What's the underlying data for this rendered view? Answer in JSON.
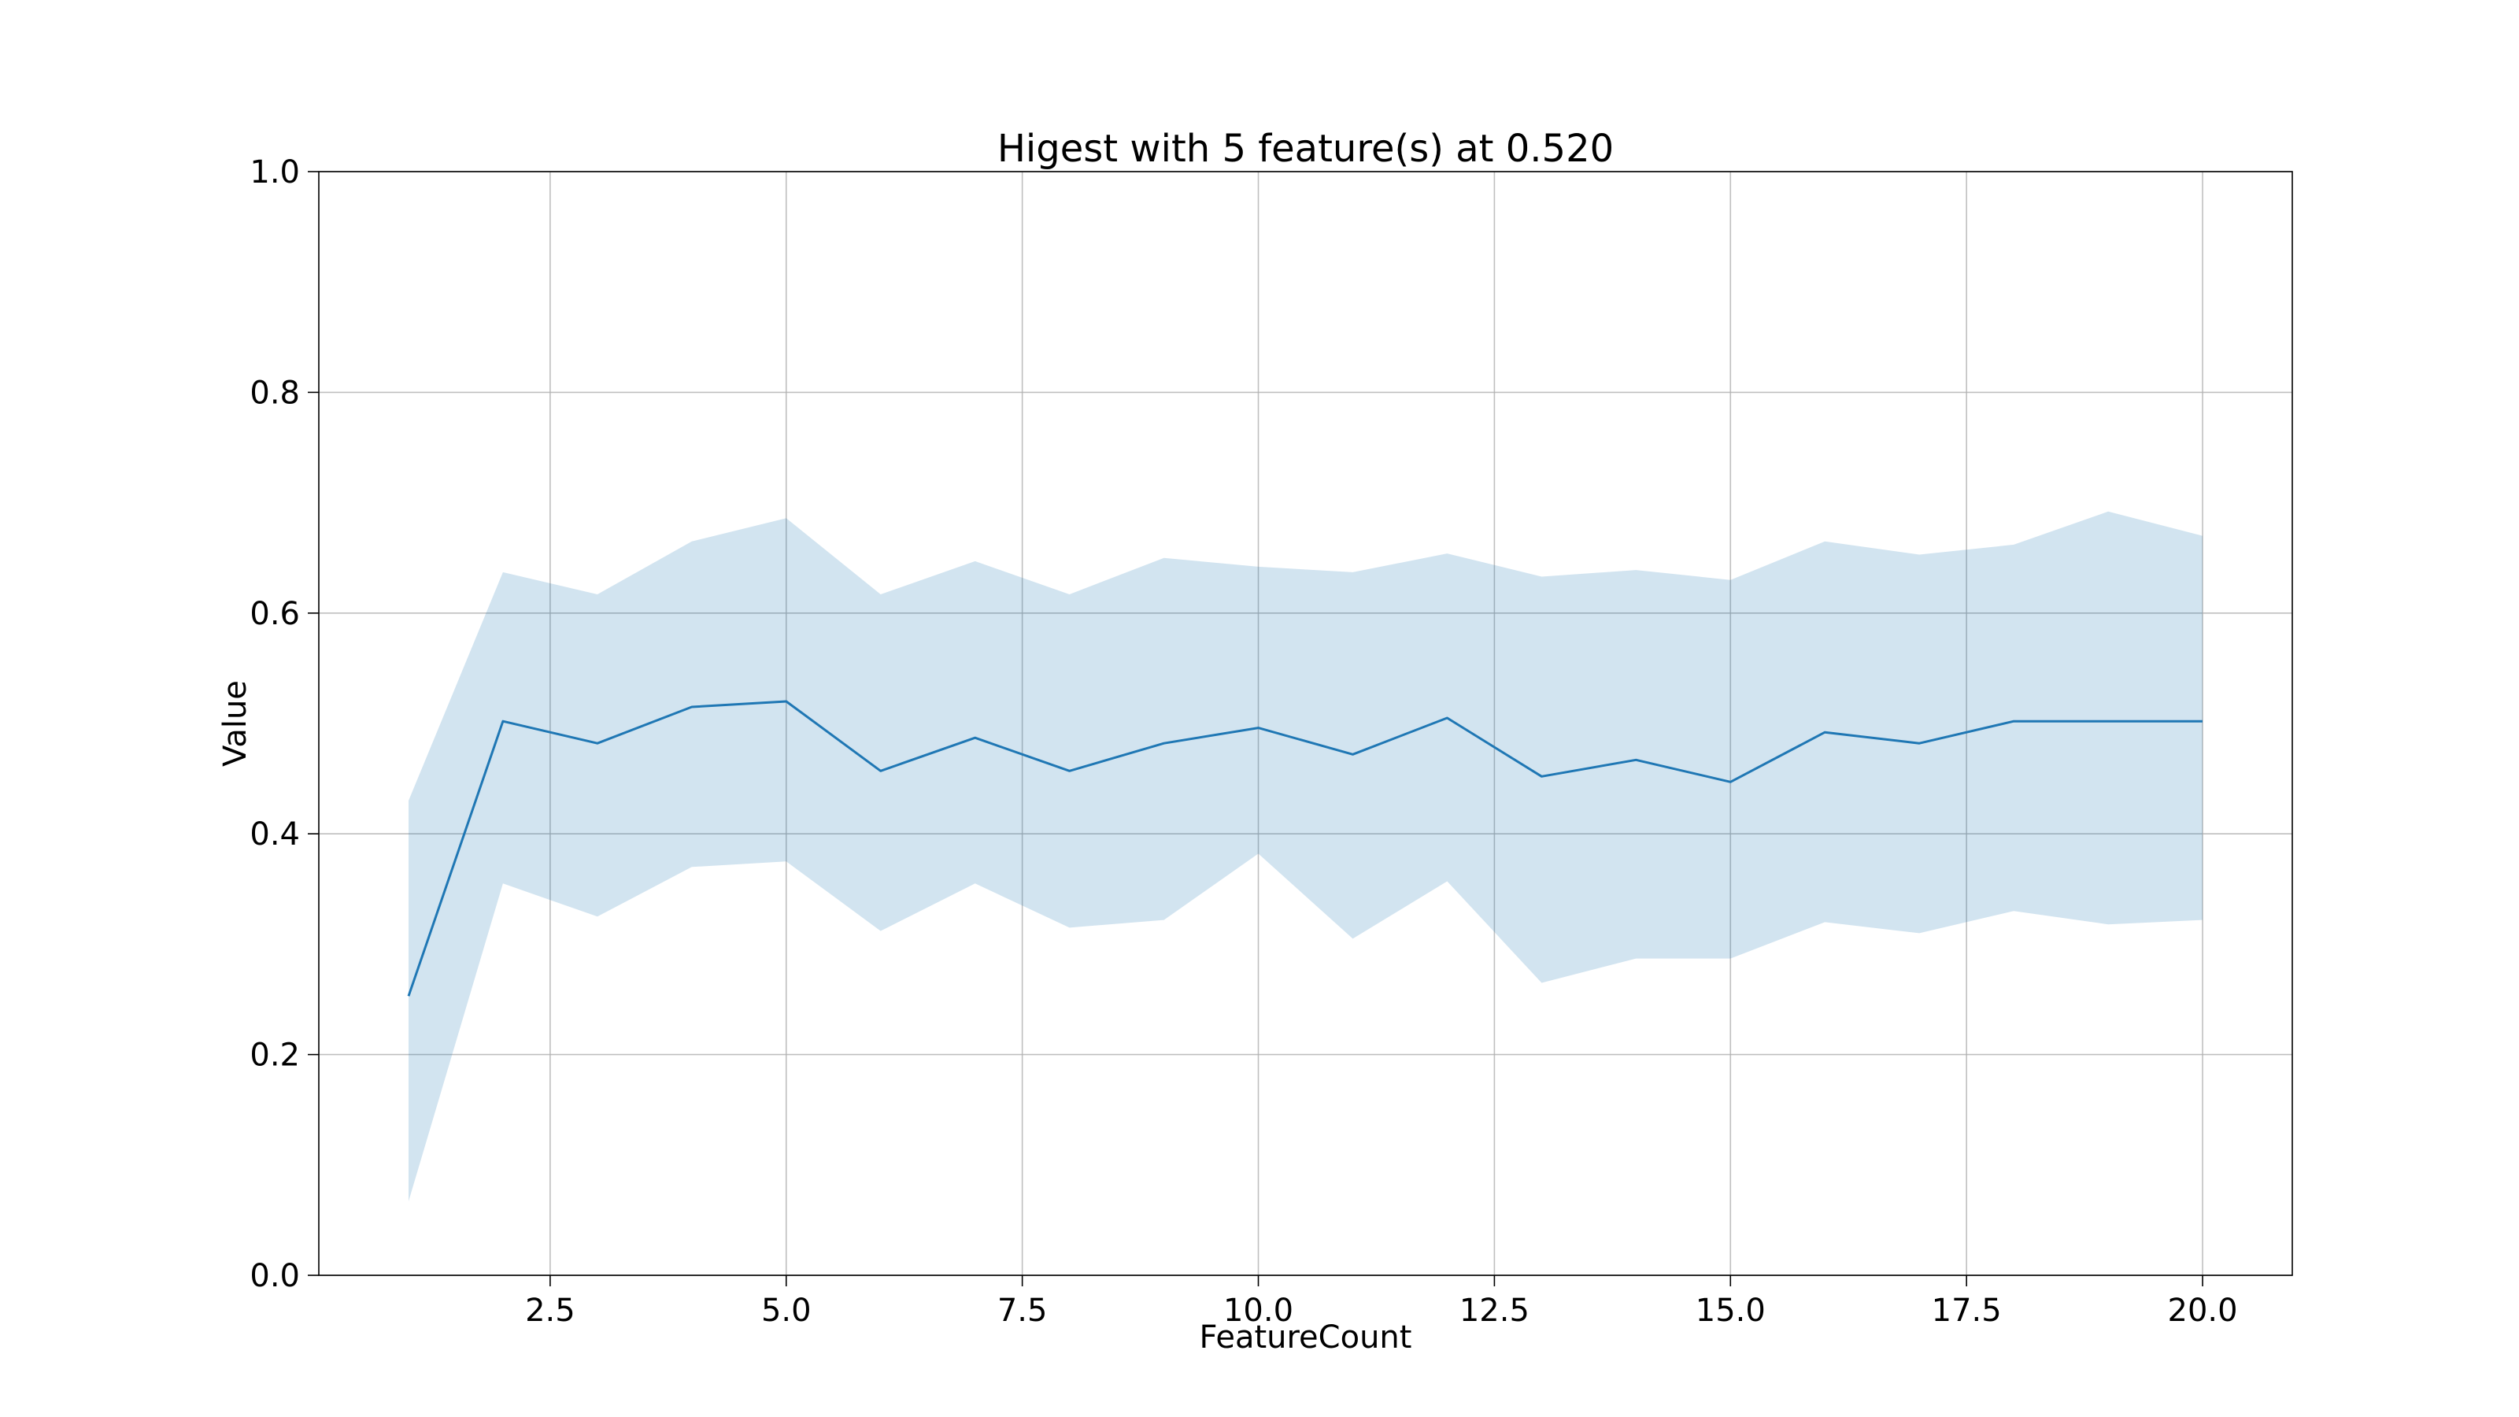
{
  "chart_data": {
    "type": "line",
    "title": "Higest with 5 feature(s) at 0.520",
    "xlabel": "FeatureCount",
    "ylabel": "Value",
    "xlim": [
      0.05,
      20.95
    ],
    "ylim": [
      0.0,
      1.0
    ],
    "x_ticks": [
      2.5,
      5.0,
      7.5,
      10.0,
      12.5,
      15.0,
      17.5,
      20.0
    ],
    "x_tick_labels": [
      "2.5",
      "5.0",
      "7.5",
      "10.0",
      "12.5",
      "15.0",
      "17.5",
      "20.0"
    ],
    "y_ticks": [
      0.0,
      0.2,
      0.4,
      0.6,
      0.8,
      1.0
    ],
    "y_tick_labels": [
      "0.0",
      "0.2",
      "0.4",
      "0.6",
      "0.8",
      "1.0"
    ],
    "grid": true,
    "legend": "none",
    "color": "#1f77b4",
    "x": [
      1,
      2,
      3,
      4,
      5,
      6,
      7,
      8,
      9,
      10,
      11,
      12,
      13,
      14,
      15,
      16,
      17,
      18,
      19,
      20
    ],
    "series": [
      {
        "values": [
          0.253,
          0.502,
          0.482,
          0.515,
          0.52,
          0.457,
          0.487,
          0.457,
          0.482,
          0.496,
          0.472,
          0.505,
          0.452,
          0.467,
          0.447,
          0.492,
          0.482,
          0.502,
          0.502,
          0.502
        ],
        "lower": [
          0.067,
          0.355,
          0.325,
          0.37,
          0.375,
          0.312,
          0.355,
          0.315,
          0.322,
          0.382,
          0.305,
          0.357,
          0.265,
          0.287,
          0.287,
          0.32,
          0.31,
          0.33,
          0.318,
          0.322
        ],
        "upper": [
          0.43,
          0.637,
          0.617,
          0.665,
          0.686,
          0.617,
          0.647,
          0.617,
          0.65,
          0.642,
          0.637,
          0.654,
          0.633,
          0.639,
          0.63,
          0.665,
          0.653,
          0.662,
          0.692,
          0.67
        ]
      }
    ]
  }
}
